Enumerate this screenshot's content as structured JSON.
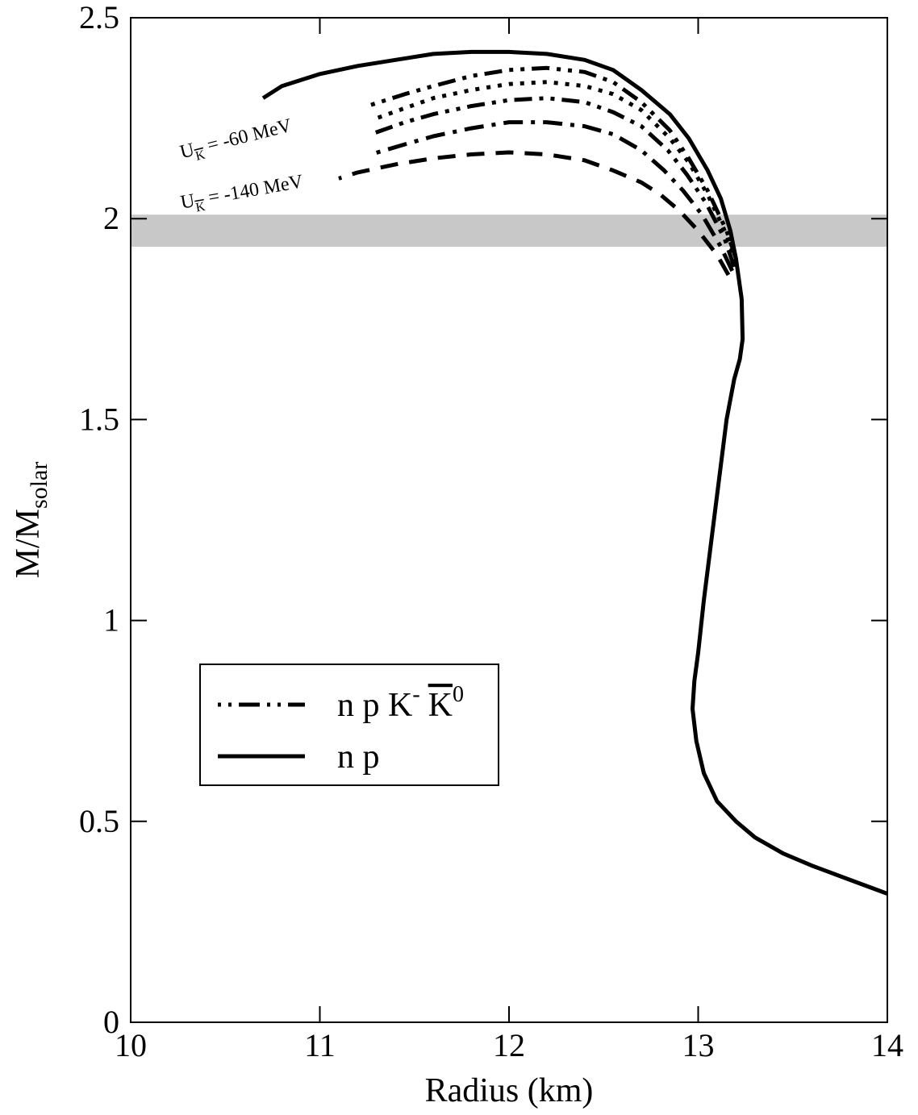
{
  "chart_data": {
    "type": "line",
    "title": "",
    "xlabel": "Radius (km)",
    "ylabel": {
      "main": "M/M",
      "sub": "solar"
    },
    "xlim": [
      10,
      14
    ],
    "ylim": [
      0,
      2.5
    ],
    "xticks": [
      10,
      11,
      12,
      13,
      14
    ],
    "yticks": [
      0,
      0.5,
      1,
      1.5,
      2,
      2.5
    ],
    "xtick_labels": [
      "10",
      "11",
      "12",
      "13",
      "14"
    ],
    "ytick_labels": [
      "0",
      "0.5",
      "1",
      "1.5",
      "2",
      "2.5"
    ],
    "grid": false,
    "shaded_band": {
      "y_range": [
        1.93,
        2.01
      ],
      "color": "#c8c8c8"
    },
    "series": [
      {
        "name": "n p",
        "style": "solid",
        "x": [
          14.0,
          13.8,
          13.6,
          13.45,
          13.3,
          13.2,
          13.1,
          13.03,
          12.99,
          12.97,
          12.98,
          13.0,
          13.03,
          13.07,
          13.11,
          13.15,
          13.19,
          13.22,
          13.235,
          13.23,
          13.2,
          13.17,
          13.12,
          13.05,
          12.95,
          12.85,
          12.7,
          12.55,
          12.4,
          12.2,
          12.0,
          11.8,
          11.6,
          11.4,
          11.2,
          11.0,
          10.8,
          10.7
        ],
        "y": [
          0.32,
          0.355,
          0.39,
          0.42,
          0.46,
          0.5,
          0.55,
          0.62,
          0.7,
          0.78,
          0.85,
          0.92,
          1.05,
          1.2,
          1.35,
          1.5,
          1.6,
          1.65,
          1.7,
          1.8,
          1.9,
          1.97,
          2.05,
          2.12,
          2.2,
          2.26,
          2.32,
          2.37,
          2.395,
          2.41,
          2.415,
          2.415,
          2.41,
          2.395,
          2.38,
          2.36,
          2.33,
          2.3
        ]
      },
      {
        "name": "U_K = -60 MeV",
        "style": "dash-dot-dot",
        "x": [
          13.2,
          13.15,
          13.05,
          12.95,
          12.85,
          12.7,
          12.55,
          12.4,
          12.2,
          12.0,
          11.8,
          11.6,
          11.45,
          11.25
        ],
        "y": [
          1.9,
          1.97,
          2.07,
          2.15,
          2.22,
          2.29,
          2.34,
          2.365,
          2.375,
          2.37,
          2.355,
          2.33,
          2.31,
          2.28
        ]
      },
      {
        "name": "",
        "style": "dotted",
        "x": [
          13.2,
          13.15,
          13.05,
          12.95,
          12.85,
          12.7,
          12.55,
          12.4,
          12.2,
          12.0,
          11.8,
          11.6,
          11.45,
          11.3
        ],
        "y": [
          1.89,
          1.96,
          2.06,
          2.14,
          2.2,
          2.27,
          2.31,
          2.33,
          2.34,
          2.335,
          2.32,
          2.3,
          2.275,
          2.25
        ]
      },
      {
        "name": "",
        "style": "dash-dot-dot",
        "x": [
          13.19,
          13.14,
          13.04,
          12.94,
          12.84,
          12.7,
          12.55,
          12.4,
          12.2,
          12.0,
          11.8,
          11.6,
          11.45,
          11.27
        ],
        "y": [
          1.88,
          1.95,
          2.04,
          2.11,
          2.17,
          2.23,
          2.265,
          2.29,
          2.3,
          2.295,
          2.28,
          2.26,
          2.24,
          2.21
        ]
      },
      {
        "name": "",
        "style": "dash-dot",
        "x": [
          13.18,
          13.12,
          13.02,
          12.92,
          12.82,
          12.7,
          12.55,
          12.4,
          12.2,
          12.0,
          11.8,
          11.6,
          11.45,
          11.27
        ],
        "y": [
          1.87,
          1.93,
          2.01,
          2.07,
          2.12,
          2.17,
          2.21,
          2.23,
          2.24,
          2.24,
          2.225,
          2.205,
          2.185,
          2.16
        ]
      },
      {
        "name": "U_K = -140 MeV",
        "style": "dashed",
        "x": [
          13.16,
          13.1,
          13.0,
          12.9,
          12.8,
          12.7,
          12.55,
          12.4,
          12.2,
          12.0,
          11.8,
          11.6,
          11.4,
          11.2,
          11.1
        ],
        "y": [
          1.86,
          1.91,
          1.97,
          2.02,
          2.06,
          2.09,
          2.12,
          2.145,
          2.16,
          2.165,
          2.16,
          2.15,
          2.135,
          2.115,
          2.1
        ]
      }
    ],
    "annotations": [
      {
        "text_main": "U",
        "text_sub": "K",
        "text_rest": " = -60 MeV",
        "x": 10.27,
        "y": 2.15,
        "rotation": -14
      },
      {
        "text_main": "U",
        "text_sub": "K",
        "text_rest": " = -140 MeV",
        "x": 10.27,
        "y": 2.025,
        "rotation": -10
      }
    ],
    "legend": {
      "placement": "lower-left",
      "entries": [
        {
          "label_main": "n p K",
          "label_sup1": "-",
          "label_kbar": "K",
          "label_sup2": "0",
          "style": "dash-dot-dot"
        },
        {
          "label_main": "n p",
          "style": "solid"
        }
      ]
    }
  }
}
